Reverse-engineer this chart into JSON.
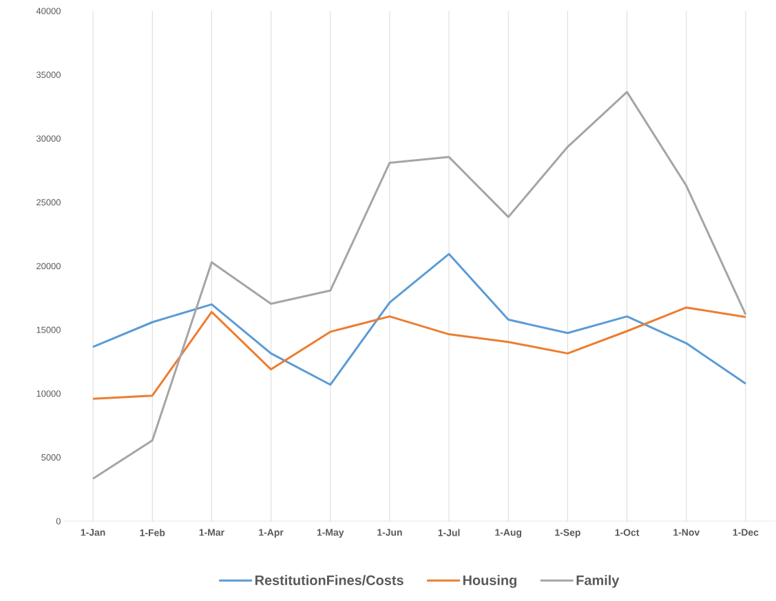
{
  "chart_data": {
    "type": "line",
    "categories": [
      "1-Jan",
      "1-Feb",
      "1-Mar",
      "1-Apr",
      "1-May",
      "1-Jun",
      "1-Jul",
      "1-Aug",
      "1-Sep",
      "1-Oct",
      "1-Nov",
      "1-Dec"
    ],
    "series": [
      {
        "name": "RestitutionFines/Costs",
        "color": "#5b9bd5",
        "values": [
          13670,
          15600,
          17000,
          13150,
          10700,
          17150,
          20950,
          15800,
          14750,
          16050,
          13950,
          10780
        ]
      },
      {
        "name": "Housing",
        "color": "#ed7d31",
        "values": [
          9600,
          9840,
          16400,
          11900,
          14850,
          16050,
          14650,
          14050,
          13150,
          14900,
          16750,
          16000
        ]
      },
      {
        "name": "Family",
        "color": "#a5a5a5",
        "values": [
          3330,
          6330,
          20300,
          17040,
          18080,
          28100,
          28550,
          23850,
          29350,
          33650,
          26300,
          16200
        ]
      }
    ],
    "ylim": [
      0,
      40000
    ],
    "yticks": [
      0,
      5000,
      10000,
      15000,
      20000,
      25000,
      30000,
      35000,
      40000
    ],
    "grid": "x",
    "legend": "bottom",
    "marker": "none",
    "line_style": "solid"
  }
}
